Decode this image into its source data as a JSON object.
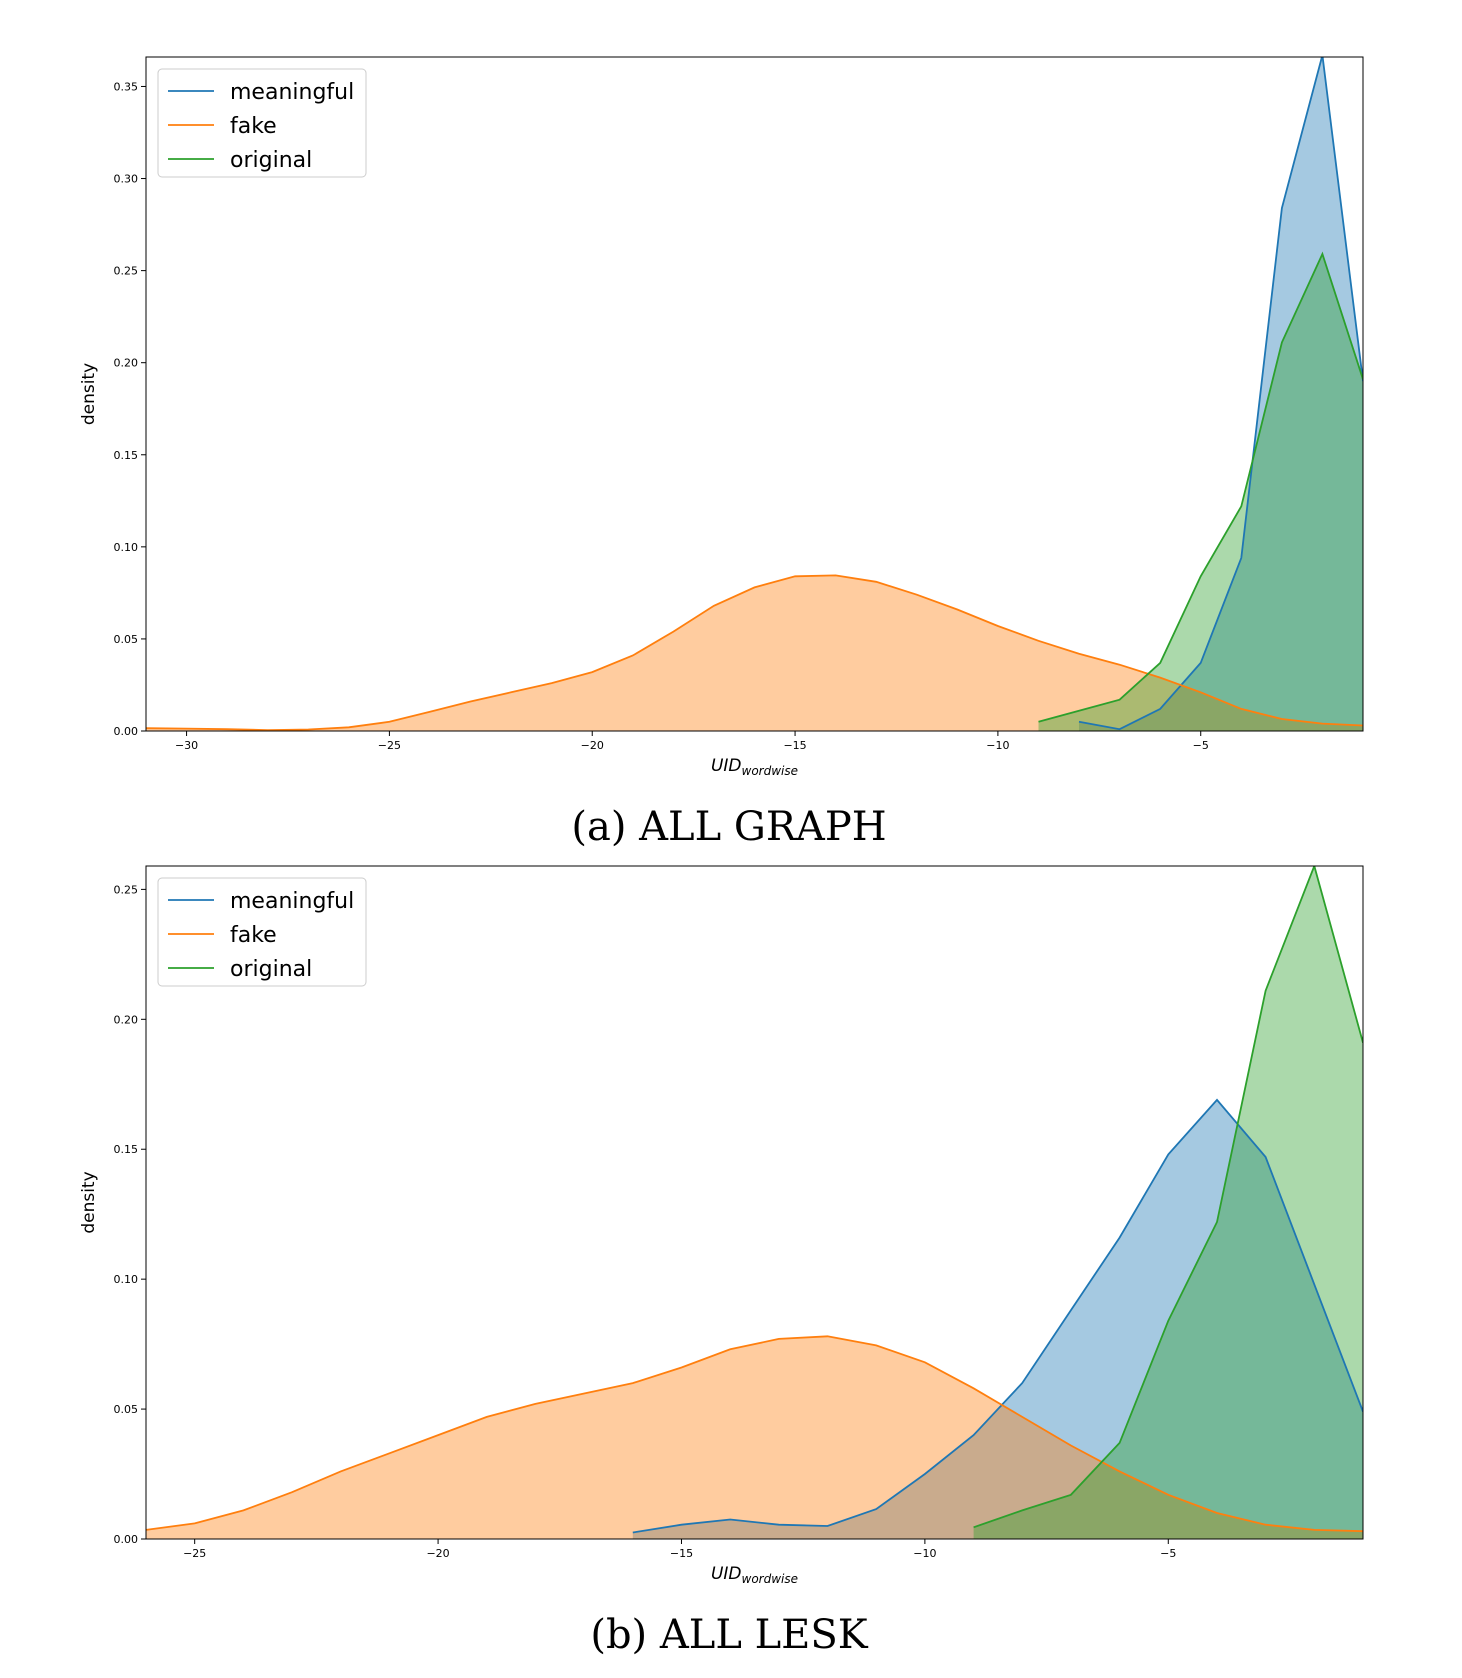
{
  "colors": {
    "meaningful": "#1f77b4",
    "fake": "#ff7f0e",
    "original": "#2ca02c"
  },
  "chart_data": [
    {
      "type": "area",
      "caption": "(a) ALL GRAPH",
      "xlabel_main": "UID",
      "xlabel_sub": "wordwise",
      "ylabel": "density",
      "xlim": [
        -31,
        -1
      ],
      "ylim": [
        0,
        0.366
      ],
      "xticks": [
        -30,
        -25,
        -20,
        -15,
        -10,
        -5
      ],
      "yticks": [
        0.0,
        0.05,
        0.1,
        0.15,
        0.2,
        0.25,
        0.3,
        0.35
      ],
      "legend_position": "top-left",
      "grid": false,
      "series": [
        {
          "name": "meaningful",
          "color_key": "meaningful",
          "points": [
            [
              -8,
              0.005
            ],
            [
              -7,
              0.001
            ],
            [
              -6,
              0.012
            ],
            [
              -5,
              0.037
            ],
            [
              -4,
              0.094
            ],
            [
              -3,
              0.284
            ],
            [
              -2,
              0.367
            ],
            [
              -1,
              0.19
            ]
          ]
        },
        {
          "name": "fake",
          "color_key": "fake",
          "points": [
            [
              -31,
              0.0015
            ],
            [
              -30,
              0.0013
            ],
            [
              -29,
              0.001
            ],
            [
              -28,
              0.0005
            ],
            [
              -27,
              0.0008
            ],
            [
              -26,
              0.002
            ],
            [
              -25,
              0.005
            ],
            [
              -24,
              0.0105
            ],
            [
              -23,
              0.016
            ],
            [
              -22,
              0.021
            ],
            [
              -21,
              0.026
            ],
            [
              -20,
              0.032
            ],
            [
              -19,
              0.041
            ],
            [
              -18,
              0.054
            ],
            [
              -17,
              0.068
            ],
            [
              -16,
              0.078
            ],
            [
              -15,
              0.084
            ],
            [
              -14,
              0.0845
            ],
            [
              -13,
              0.081
            ],
            [
              -12,
              0.074
            ],
            [
              -11,
              0.066
            ],
            [
              -10,
              0.057
            ],
            [
              -9,
              0.049
            ],
            [
              -8,
              0.042
            ],
            [
              -7,
              0.036
            ],
            [
              -6,
              0.029
            ],
            [
              -5,
              0.021
            ],
            [
              -4,
              0.012
            ],
            [
              -3,
              0.0065
            ],
            [
              -2,
              0.004
            ],
            [
              -1,
              0.003
            ]
          ]
        },
        {
          "name": "original",
          "color_key": "original",
          "points": [
            [
              -9,
              0.005
            ],
            [
              -8,
              0.011
            ],
            [
              -7,
              0.017
            ],
            [
              -6,
              0.037
            ],
            [
              -5,
              0.084
            ],
            [
              -4,
              0.122
            ],
            [
              -3,
              0.211
            ],
            [
              -2,
              0.259
            ],
            [
              -1,
              0.191
            ]
          ]
        }
      ]
    },
    {
      "type": "area",
      "caption": "(b) ALL LESK",
      "xlabel_main": "UID",
      "xlabel_sub": "wordwise",
      "ylabel": "density",
      "xlim": [
        -26,
        -1
      ],
      "ylim": [
        0,
        0.259
      ],
      "xticks": [
        -25,
        -20,
        -15,
        -10,
        -5
      ],
      "yticks": [
        0.0,
        0.05,
        0.1,
        0.15,
        0.2,
        0.25
      ],
      "legend_position": "top-left",
      "grid": false,
      "series": [
        {
          "name": "meaningful",
          "color_key": "meaningful",
          "points": [
            [
              -16,
              0.0025
            ],
            [
              -15,
              0.0055
            ],
            [
              -14,
              0.0075
            ],
            [
              -13,
              0.0055
            ],
            [
              -12,
              0.005
            ],
            [
              -11,
              0.0115
            ],
            [
              -10,
              0.025
            ],
            [
              -9,
              0.04
            ],
            [
              -8,
              0.06
            ],
            [
              -7,
              0.088
            ],
            [
              -6,
              0.116
            ],
            [
              -5,
              0.148
            ],
            [
              -4,
              0.169
            ],
            [
              -3,
              0.147
            ],
            [
              -2,
              0.098
            ],
            [
              -1,
              0.049
            ]
          ]
        },
        {
          "name": "fake",
          "color_key": "fake",
          "points": [
            [
              -26,
              0.0035
            ],
            [
              -25,
              0.006
            ],
            [
              -24,
              0.011
            ],
            [
              -23,
              0.018
            ],
            [
              -22,
              0.026
            ],
            [
              -21,
              0.033
            ],
            [
              -20,
              0.04
            ],
            [
              -19,
              0.047
            ],
            [
              -18,
              0.052
            ],
            [
              -17,
              0.056
            ],
            [
              -16,
              0.06
            ],
            [
              -15,
              0.066
            ],
            [
              -14,
              0.073
            ],
            [
              -13,
              0.077
            ],
            [
              -12,
              0.078
            ],
            [
              -11,
              0.0745
            ],
            [
              -10,
              0.068
            ],
            [
              -9,
              0.058
            ],
            [
              -8,
              0.047
            ],
            [
              -7,
              0.036
            ],
            [
              -6,
              0.026
            ],
            [
              -5,
              0.017
            ],
            [
              -4,
              0.01
            ],
            [
              -3,
              0.0055
            ],
            [
              -2,
              0.0035
            ],
            [
              -1,
              0.003
            ]
          ]
        },
        {
          "name": "original",
          "color_key": "original",
          "points": [
            [
              -9,
              0.0045
            ],
            [
              -8,
              0.011
            ],
            [
              -7,
              0.017
            ],
            [
              -6,
              0.037
            ],
            [
              -5,
              0.084
            ],
            [
              -4,
              0.122
            ],
            [
              -3,
              0.211
            ],
            [
              -2,
              0.259
            ],
            [
              -1,
              0.191
            ]
          ]
        }
      ]
    }
  ]
}
